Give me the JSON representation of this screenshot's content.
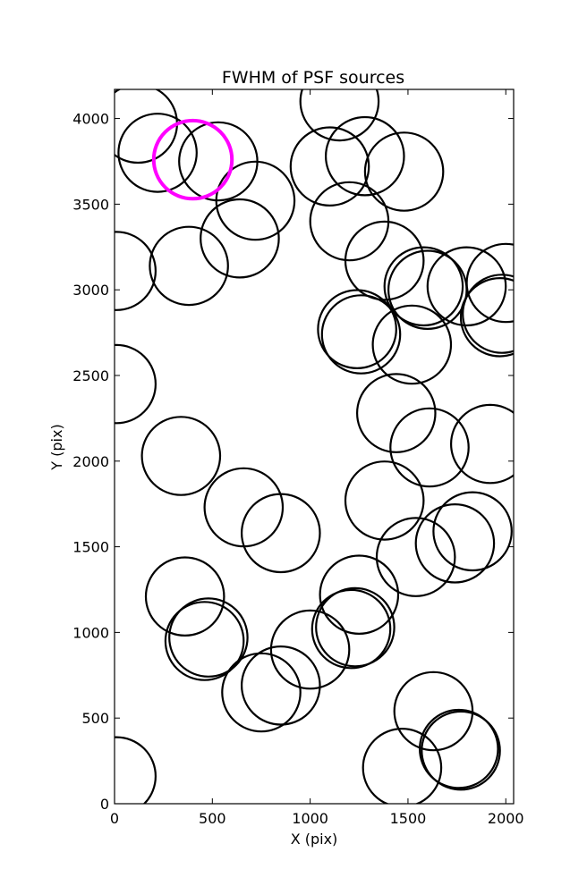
{
  "chart_data": {
    "type": "scatter",
    "title": "FWHM of PSF sources",
    "xlabel": "X (pix)",
    "ylabel": "Y (pix)",
    "xlim": [
      0,
      2040
    ],
    "ylim": [
      0,
      4170
    ],
    "xticks": [
      0,
      500,
      1000,
      1500,
      2000
    ],
    "yticks": [
      0,
      500,
      1000,
      1500,
      2000,
      2500,
      3000,
      3500,
      4000
    ],
    "grid": false,
    "marker_radius_xunits": 200,
    "series": [
      {
        "color": "#000000",
        "points": [
          [
            120,
            3970
          ],
          [
            220,
            3800
          ],
          [
            530,
            3750
          ],
          [
            1150,
            4100
          ],
          [
            1100,
            3720
          ],
          [
            1280,
            3780
          ],
          [
            1480,
            3690
          ],
          [
            720,
            3520
          ],
          [
            640,
            3300
          ],
          [
            1200,
            3400
          ],
          [
            380,
            3140
          ],
          [
            10,
            3110
          ],
          [
            1380,
            3170
          ],
          [
            1580,
            3020
          ],
          [
            1600,
            3000
          ],
          [
            1800,
            3020
          ],
          [
            2000,
            3040
          ],
          [
            1980,
            2860
          ],
          [
            1970,
            2840
          ],
          [
            1240,
            2770
          ],
          [
            1260,
            2740
          ],
          [
            1520,
            2680
          ],
          [
            10,
            2450
          ],
          [
            1440,
            2280
          ],
          [
            1610,
            2080
          ],
          [
            1920,
            2100
          ],
          [
            340,
            2030
          ],
          [
            660,
            1730
          ],
          [
            850,
            1580
          ],
          [
            1380,
            1770
          ],
          [
            1540,
            1440
          ],
          [
            1740,
            1520
          ],
          [
            1830,
            1590
          ],
          [
            360,
            1210
          ],
          [
            480,
            970
          ],
          [
            460,
            950
          ],
          [
            1250,
            1220
          ],
          [
            1230,
            1030
          ],
          [
            1210,
            1020
          ],
          [
            1000,
            900
          ],
          [
            750,
            650
          ],
          [
            850,
            690
          ],
          [
            1630,
            540
          ],
          [
            1760,
            320
          ],
          [
            1770,
            310
          ],
          [
            1470,
            210
          ],
          [
            10,
            160
          ]
        ]
      },
      {
        "color": "#ff00ff",
        "points": [
          [
            400,
            3760
          ]
        ]
      }
    ]
  }
}
